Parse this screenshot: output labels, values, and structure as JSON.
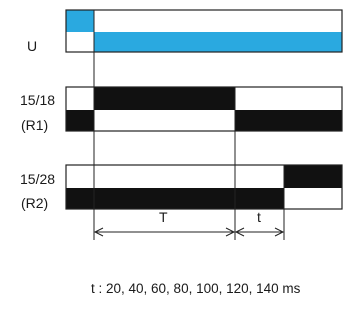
{
  "colors": {
    "supply_fill": "#2aa9e0",
    "relay_fill": "#111111",
    "line": "#222222",
    "background": "#ffffff"
  },
  "supply": {
    "label": "U"
  },
  "relay1": {
    "terminals": "15/18",
    "name": "(R1)"
  },
  "relay2": {
    "terminals": "15/28",
    "name": "(R2)"
  },
  "dimensions": {
    "main_period": "T",
    "short_period": "t"
  },
  "footnote": "t : 20, 40, 60, 80, 100, 120, 140 ms"
}
